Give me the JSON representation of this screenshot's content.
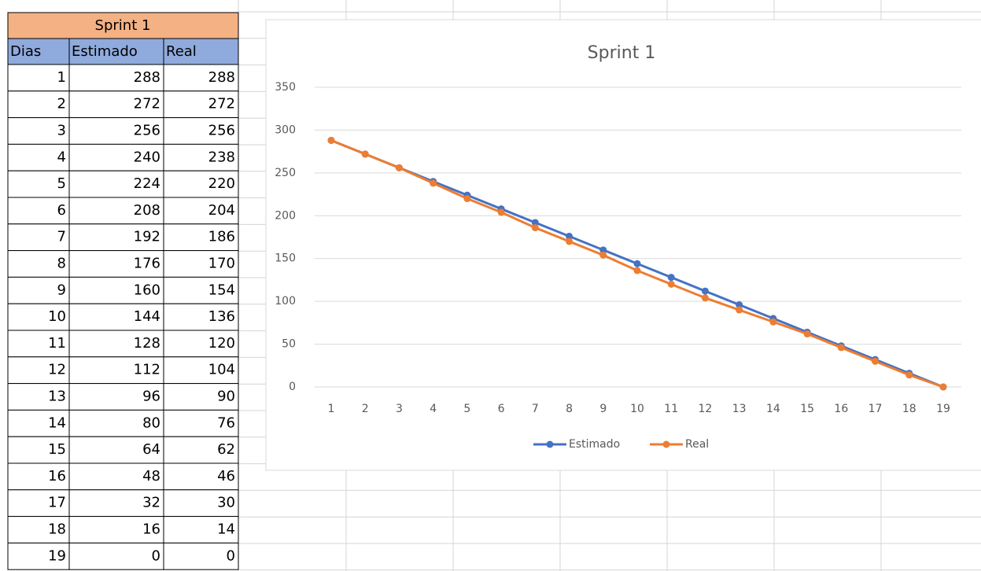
{
  "table": {
    "title": "Sprint 1",
    "columns": [
      "Dias",
      "Estimado",
      "Real"
    ],
    "rows": [
      [
        1,
        288,
        288
      ],
      [
        2,
        272,
        272
      ],
      [
        3,
        256,
        256
      ],
      [
        4,
        240,
        238
      ],
      [
        5,
        224,
        220
      ],
      [
        6,
        208,
        204
      ],
      [
        7,
        192,
        186
      ],
      [
        8,
        176,
        170
      ],
      [
        9,
        160,
        154
      ],
      [
        10,
        144,
        136
      ],
      [
        11,
        128,
        120
      ],
      [
        12,
        112,
        104
      ],
      [
        13,
        96,
        90
      ],
      [
        14,
        80,
        76
      ],
      [
        15,
        64,
        62
      ],
      [
        16,
        48,
        46
      ],
      [
        17,
        32,
        30
      ],
      [
        18,
        16,
        14
      ],
      [
        19,
        0,
        0
      ]
    ]
  },
  "chart_data": {
    "type": "line",
    "title": "Sprint 1",
    "categories": [
      1,
      2,
      3,
      4,
      5,
      6,
      7,
      8,
      9,
      10,
      11,
      12,
      13,
      14,
      15,
      16,
      17,
      18,
      19
    ],
    "series": [
      {
        "name": "Estimado",
        "color": "#4472c4",
        "values": [
          288,
          272,
          256,
          240,
          224,
          208,
          192,
          176,
          160,
          144,
          128,
          112,
          96,
          80,
          64,
          48,
          32,
          16,
          0
        ]
      },
      {
        "name": "Real",
        "color": "#ed7d31",
        "values": [
          288,
          272,
          256,
          238,
          220,
          204,
          186,
          170,
          154,
          136,
          120,
          104,
          90,
          76,
          62,
          46,
          30,
          14,
          0
        ]
      }
    ],
    "ylim": [
      0,
      350
    ],
    "yticks": [
      0,
      50,
      100,
      150,
      200,
      250,
      300,
      350
    ],
    "grid": true,
    "legend": "bottom"
  }
}
